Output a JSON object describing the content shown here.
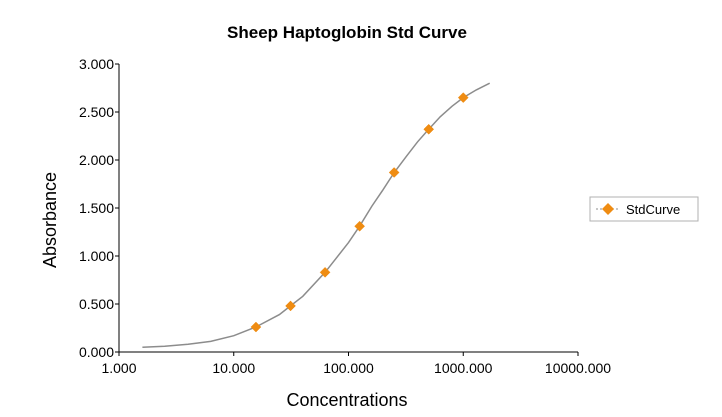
{
  "chart_data": {
    "type": "scatter",
    "title": "Sheep Haptoglobin Std Curve",
    "xlabel": "Concentrations",
    "ylabel": "Absorbance",
    "x_scale": "log",
    "xlim": [
      1,
      10000
    ],
    "ylim": [
      0,
      3
    ],
    "x_ticks": [
      {
        "value": 1,
        "label": "1.000"
      },
      {
        "value": 10,
        "label": "10.000"
      },
      {
        "value": 100,
        "label": "100.000"
      },
      {
        "value": 1000,
        "label": "1000.000"
      },
      {
        "value": 10000,
        "label": "10000.000"
      }
    ],
    "y_ticks": [
      {
        "value": 0,
        "label": "0.000"
      },
      {
        "value": 0.5,
        "label": "0.500"
      },
      {
        "value": 1,
        "label": "1.000"
      },
      {
        "value": 1.5,
        "label": "1.500"
      },
      {
        "value": 2,
        "label": "2.000"
      },
      {
        "value": 2.5,
        "label": "2.500"
      },
      {
        "value": 3,
        "label": "3.000"
      }
    ],
    "grid": false,
    "legend_position": "right",
    "series": [
      {
        "name": "StdCurve",
        "marker": "diamond",
        "color": "#ef8c12",
        "x": [
          15.6,
          31.25,
          62.5,
          125,
          250,
          500,
          1000
        ],
        "y": [
          0.26,
          0.48,
          0.83,
          1.31,
          1.87,
          2.32,
          2.65
        ]
      }
    ],
    "fit_curve": {
      "color": "#8c8c8c",
      "x": [
        1.6,
        2.5,
        4,
        6.3,
        10,
        15.6,
        25,
        31.25,
        40,
        62.5,
        100,
        125,
        160,
        200,
        250,
        320,
        400,
        500,
        630,
        800,
        1000,
        1300,
        1700
      ],
      "y": [
        0.05,
        0.06,
        0.08,
        0.11,
        0.17,
        0.26,
        0.39,
        0.48,
        0.58,
        0.83,
        1.14,
        1.31,
        1.52,
        1.69,
        1.87,
        2.04,
        2.19,
        2.32,
        2.45,
        2.56,
        2.65,
        2.73,
        2.8
      ]
    }
  }
}
